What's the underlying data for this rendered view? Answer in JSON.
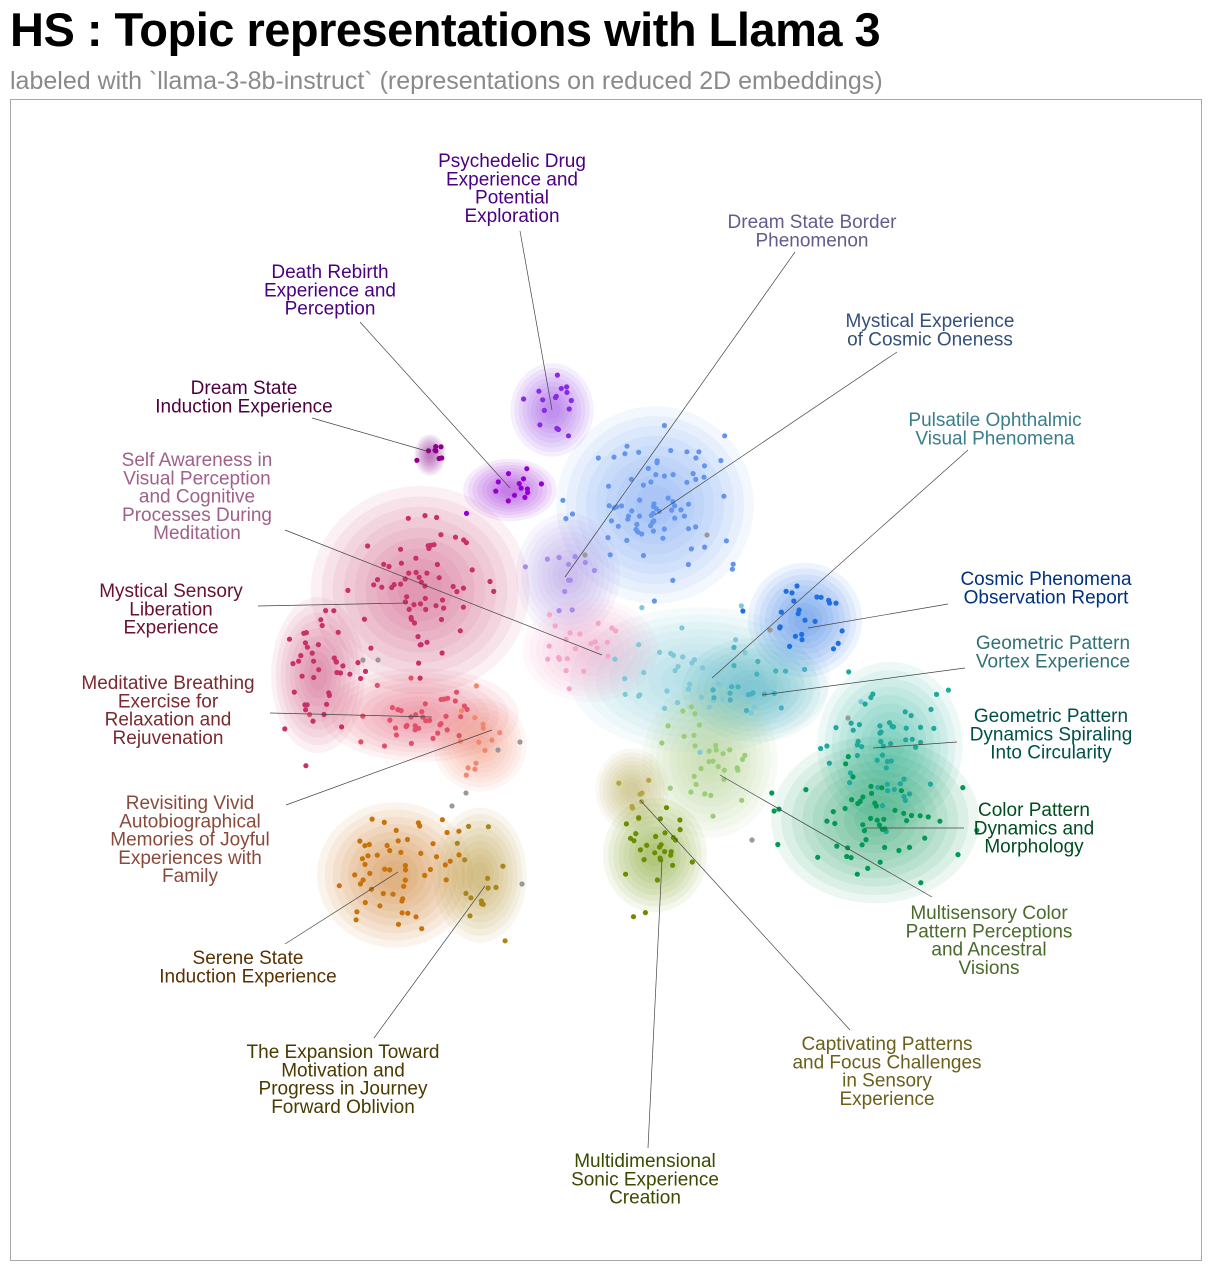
{
  "title": "HS : Topic representations with Llama 3",
  "subtitle": "labeled with `llama-3-8b-instruct` (representations on reduced 2D embeddings)",
  "chart_data": {
    "type": "scatter",
    "grid": false,
    "axes_visible": false,
    "frame": true,
    "outlier_color": "#999999",
    "topics": [
      {
        "id": "psychedelic",
        "label_lines": [
          "Psychedelic Drug",
          "Experience and",
          "Potential",
          "Exploration"
        ],
        "color": "#8a2be2",
        "label_color": "#4b0082",
        "centroid": [
          552,
          410
        ],
        "sd": [
          16,
          18
        ],
        "n": 16
      },
      {
        "id": "dream-border",
        "label_lines": [
          "Dream State Border",
          "Phenomenon"
        ],
        "color": "#a78bea",
        "label_color": "#665a8c",
        "centroid": [
          568,
          575
        ],
        "sd": [
          20,
          24
        ],
        "n": 12
      },
      {
        "id": "death-rebirth",
        "label_lines": [
          "Death Rebirth",
          "Experience and",
          "Perception"
        ],
        "color": "#9400d3",
        "label_color": "#4b0082",
        "centroid": [
          510,
          490
        ],
        "sd": [
          18,
          12
        ],
        "n": 14
      },
      {
        "id": "dream-induction",
        "label_lines": [
          "Dream State",
          "Induction Experience"
        ],
        "color": "#8b008b",
        "label_color": "#4b0040",
        "centroid": [
          430,
          455
        ],
        "sd": [
          6,
          8
        ],
        "n": 8
      },
      {
        "id": "cosmic-oneness",
        "label_lines": [
          "Mystical Experience",
          "of Cosmic Oneness"
        ],
        "color": "#6495ed",
        "label_color": "#34507a",
        "centroid": [
          655,
          505
        ],
        "sd": [
          38,
          38
        ],
        "n": 80
      },
      {
        "id": "pulsatile",
        "label_lines": [
          "Pulsatile Ophthalmic",
          "Visual Phenomena"
        ],
        "color": "#7ec8d8",
        "label_color": "#3a7d8c",
        "centroid": [
          700,
          680
        ],
        "sd": [
          50,
          28
        ],
        "n": 38
      },
      {
        "id": "cosmic-report",
        "label_lines": [
          "Cosmic Phenomena",
          "Observation Report"
        ],
        "color": "#1e6fe0",
        "label_color": "#003080",
        "centroid": [
          805,
          620
        ],
        "sd": [
          22,
          22
        ],
        "n": 24
      },
      {
        "id": "vortex",
        "label_lines": [
          "Geometric Pattern",
          "Vortex Experience"
        ],
        "color": "#48b0c0",
        "label_color": "#307078",
        "centroid": [
          755,
          690
        ],
        "sd": [
          28,
          20
        ],
        "n": 20
      },
      {
        "id": "circularity",
        "label_lines": [
          "Geometric Pattern",
          "Dynamics Spiraling",
          "Into Circularity"
        ],
        "color": "#20a89a",
        "label_color": "#00504a",
        "centroid": [
          890,
          745
        ],
        "sd": [
          28,
          32
        ],
        "n": 55
      },
      {
        "id": "morphology",
        "label_lines": [
          "Color Pattern",
          "Dynamics and",
          "Morphology"
        ],
        "color": "#009955",
        "label_color": "#004d20",
        "centroid": [
          875,
          820
        ],
        "sd": [
          40,
          32
        ],
        "n": 55
      },
      {
        "id": "multisensory",
        "label_lines": [
          "Multisensory Color",
          "Pattern Perceptions",
          "and Ancestral",
          "Visions"
        ],
        "color": "#9ccc78",
        "label_color": "#4a6a2c",
        "centroid": [
          710,
          760
        ],
        "sd": [
          26,
          30
        ],
        "n": 32
      },
      {
        "id": "captivating",
        "label_lines": [
          "Captivating Patterns",
          "and Focus Challenges",
          "in Sensory",
          "Experience"
        ],
        "color": "#b5a642",
        "label_color": "#6b5f1a",
        "centroid": [
          632,
          790
        ],
        "sd": [
          14,
          16
        ],
        "n": 8
      },
      {
        "id": "sonic",
        "label_lines": [
          "Multidimensional",
          "Sonic Experience",
          "Creation"
        ],
        "color": "#6b8e00",
        "label_color": "#3a4a00",
        "centroid": [
          655,
          855
        ],
        "sd": [
          20,
          22
        ],
        "n": 30
      },
      {
        "id": "self-awareness",
        "label_lines": [
          "Self Awareness in",
          "Visual Perception",
          "and Cognitive",
          "Processes During",
          "Meditation"
        ],
        "color": "#f4a6c8",
        "label_color": "#a0608a",
        "centroid": [
          590,
          650
        ],
        "sd": [
          26,
          20
        ],
        "n": 22
      },
      {
        "id": "sensory-liberation",
        "label_lines": [
          "Mystical Sensory",
          "Liberation",
          "Experience"
        ],
        "color": "#c8306a",
        "label_color": "#6a1030",
        "centroid": [
          420,
          590
        ],
        "sd": [
          42,
          40
        ],
        "n": 70
      },
      {
        "id": "mystic-left",
        "label_lines": [],
        "color": "#c8306a",
        "label_color": "#6a1030",
        "centroid": [
          318,
          675
        ],
        "sd": [
          18,
          30
        ],
        "n": 35
      },
      {
        "id": "breathing",
        "label_lines": [
          "Meditative Breathing",
          "Exercise for",
          "Relaxation and",
          "Rejuvenation"
        ],
        "color": "#e0506a",
        "label_color": "#7a2a30",
        "centroid": [
          420,
          715
        ],
        "sd": [
          38,
          18
        ],
        "n": 40
      },
      {
        "id": "revisiting",
        "label_lines": [
          "Revisiting Vivid",
          "Autobiographical",
          "Memories of Joyful",
          "Experiences with",
          "Family"
        ],
        "color": "#f08870",
        "label_color": "#8a4a3a",
        "centroid": [
          480,
          745
        ],
        "sd": [
          18,
          18
        ],
        "n": 14
      },
      {
        "id": "serene",
        "label_lines": [
          "Serene State",
          "Induction Experience"
        ],
        "color": "#c8720a",
        "label_color": "#5a3000",
        "centroid": [
          395,
          875
        ],
        "sd": [
          30,
          28
        ],
        "n": 55
      },
      {
        "id": "expansion",
        "label_lines": [
          "The Expansion Toward",
          "Motivation and",
          "Progress in Journey",
          "Forward Oblivion"
        ],
        "color": "#a8861a",
        "label_color": "#4a3a00",
        "centroid": [
          480,
          875
        ],
        "sd": [
          18,
          26
        ],
        "n": 14
      }
    ]
  }
}
